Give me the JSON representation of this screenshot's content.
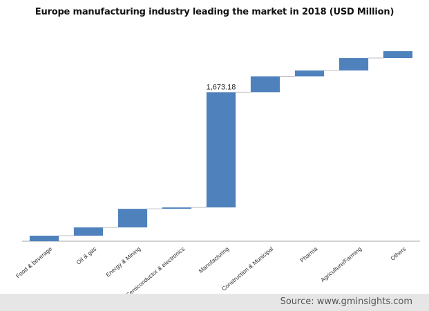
{
  "title": "Europe manufacturing industry leading the market in 2018 (USD Million)",
  "source": "Source: www.gminsights.com",
  "colors": {
    "bar": "#4f81bd",
    "connector": "#bfbfbf",
    "axis": "#a6a6a6",
    "background_band": "#e6e6e6"
  },
  "chart_data": {
    "type": "waterfall",
    "title": "Europe manufacturing industry leading the market in 2018 (USD Million)",
    "xlabel": "",
    "ylabel": "",
    "ylim": [
      0,
      3100
    ],
    "grid": false,
    "categories": [
      "Food & beverage",
      "Oil & gas",
      "Energy & Mining",
      "Semiconductor & electronics",
      "Manufacturing",
      "Construction & Municipal",
      "Pharma",
      "Agriculture/Farming",
      "Others"
    ],
    "values": [
      80,
      120,
      270,
      20,
      1673.18,
      230,
      85,
      180,
      100
    ],
    "data_labels": [
      "",
      "",
      "",
      "",
      "1,673.18",
      "",
      "",
      "",
      ""
    ]
  }
}
